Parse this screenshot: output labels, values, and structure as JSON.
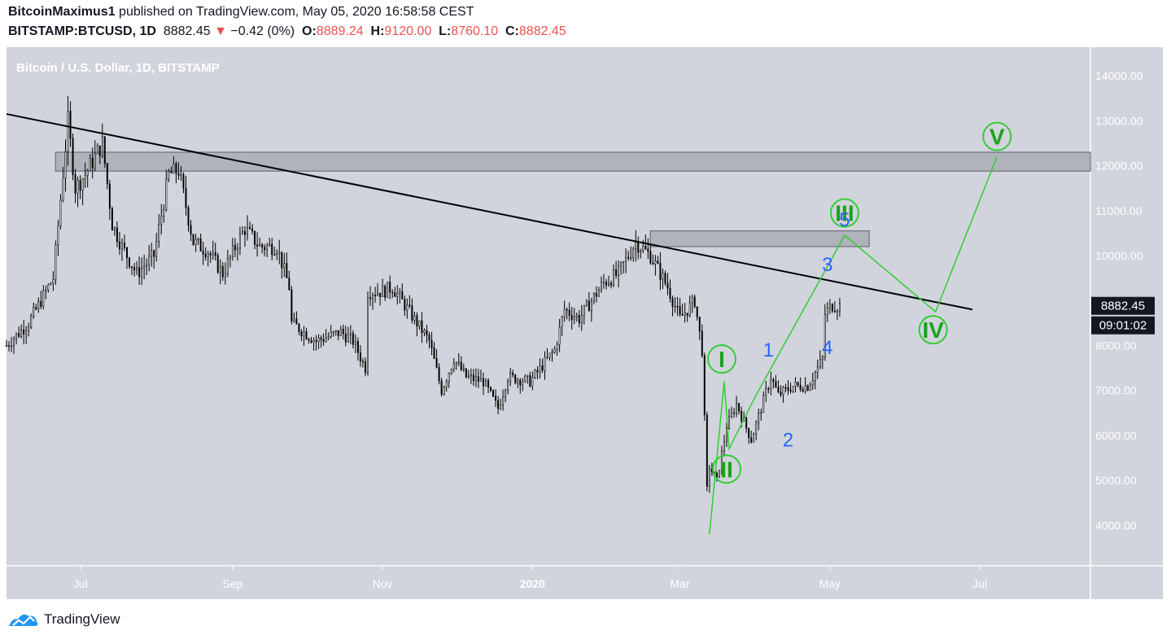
{
  "header": {
    "author": "BitcoinMaximus1",
    "published_text": "published on TradingView.com, May 05, 2020 16:58:58 CEST",
    "symbol": "BITSTAMP:BTCUSD, 1D",
    "price": "8882.45",
    "change_arrow": "▼",
    "change": "−0.42 (0%)",
    "o_label": "O:",
    "o_value": "8889.24",
    "h_label": "H:",
    "h_value": "9120.00",
    "l_label": "L:",
    "l_value": "8760.10",
    "c_label": "C:",
    "c_value": "8882.45"
  },
  "footer": {
    "brand": "TradingView"
  },
  "colors": {
    "plot_bg": "#d1d4dc",
    "candle": "#000000",
    "wave_green": "#33cc33",
    "wave_label_green": "#1aa31a",
    "wave_blue": "#2962ff",
    "price_tag_bg": "#131722"
  },
  "chart_data": {
    "type": "candlestick",
    "title": "Bitcoin / U.S. Dollar, 1D, BITSTAMP",
    "y_axis": {
      "ticks": [
        "14000.00",
        "13000.00",
        "12000.00",
        "11000.00",
        "10000.00",
        "9000.00",
        "8000.00",
        "7000.00",
        "6000.00",
        "5000.00",
        "4000.00"
      ],
      "tick_values": [
        14000,
        13000,
        12000,
        11000,
        10000,
        9000,
        8000,
        7000,
        6000,
        5000,
        4000
      ],
      "range": [
        3100,
        14600
      ],
      "current_price": "8882.45",
      "countdown": "09:01:02"
    },
    "x_axis": {
      "labels": [
        "Jul",
        "Sep",
        "Nov",
        "2020",
        "Mar",
        "May",
        "Jul"
      ],
      "dates": [
        "2019-07-01",
        "2019-09-01",
        "2019-11-01",
        "2020-01-01",
        "2020-03-01",
        "2020-05-01",
        "2020-07-01"
      ],
      "range": [
        "2019-06-01",
        "2020-08-15"
      ]
    },
    "price_path": [
      [
        "2019-06-01",
        8000
      ],
      [
        "2019-06-10",
        8500
      ],
      [
        "2019-06-20",
        9500
      ],
      [
        "2019-06-26",
        13000
      ],
      [
        "2019-06-29",
        11500
      ],
      [
        "2019-07-03",
        11800
      ],
      [
        "2019-07-10",
        12500
      ],
      [
        "2019-07-14",
        10700
      ],
      [
        "2019-07-18",
        10200
      ],
      [
        "2019-07-24",
        9600
      ],
      [
        "2019-07-31",
        10000
      ],
      [
        "2019-08-06",
        11800
      ],
      [
        "2019-08-10",
        11900
      ],
      [
        "2019-08-16",
        10300
      ],
      [
        "2019-08-22",
        10100
      ],
      [
        "2019-08-28",
        9600
      ],
      [
        "2019-09-03",
        10300
      ],
      [
        "2019-09-06",
        10600
      ],
      [
        "2019-09-12",
        10200
      ],
      [
        "2019-09-19",
        10200
      ],
      [
        "2019-09-24",
        9300
      ],
      [
        "2019-09-25",
        8500
      ],
      [
        "2019-10-05",
        8100
      ],
      [
        "2019-10-15",
        8300
      ],
      [
        "2019-10-20",
        8100
      ],
      [
        "2019-10-25",
        7500
      ],
      [
        "2019-10-26",
        9200
      ],
      [
        "2019-11-01",
        9200
      ],
      [
        "2019-11-05",
        9300
      ],
      [
        "2019-11-10",
        8900
      ],
      [
        "2019-11-20",
        8100
      ],
      [
        "2019-11-25",
        7000
      ],
      [
        "2019-11-30",
        7700
      ],
      [
        "2019-12-05",
        7300
      ],
      [
        "2019-12-12",
        7200
      ],
      [
        "2019-12-18",
        6600
      ],
      [
        "2019-12-22",
        7300
      ],
      [
        "2019-12-31",
        7200
      ],
      [
        "2020-01-10",
        7900
      ],
      [
        "2020-01-14",
        8800
      ],
      [
        "2020-01-20",
        8600
      ],
      [
        "2020-01-30",
        9400
      ],
      [
        "2020-02-05",
        9600
      ],
      [
        "2020-02-12",
        10300
      ],
      [
        "2020-02-18",
        10000
      ],
      [
        "2020-02-25",
        9300
      ],
      [
        "2020-03-01",
        8600
      ],
      [
        "2020-03-07",
        9000
      ],
      [
        "2020-03-10",
        7900
      ],
      [
        "2020-03-12",
        4800
      ],
      [
        "2020-03-13",
        5300
      ],
      [
        "2020-03-16",
        5000
      ],
      [
        "2020-03-20",
        6200
      ],
      [
        "2020-03-24",
        6700
      ],
      [
        "2020-03-30",
        5900
      ],
      [
        "2020-04-07",
        7300
      ],
      [
        "2020-04-10",
        6900
      ],
      [
        "2020-04-16",
        7100
      ],
      [
        "2020-04-22",
        7100
      ],
      [
        "2020-04-28",
        7700
      ],
      [
        "2020-04-29",
        8700
      ],
      [
        "2020-05-02",
        8900
      ],
      [
        "2020-05-05",
        8882
      ]
    ],
    "trendline": {
      "start": [
        "2019-06-01",
        13150
      ],
      "end": [
        "2020-06-28",
        8800
      ]
    },
    "zones": [
      {
        "from": "2019-06-11",
        "to": "2020-08-15",
        "low": 11880,
        "high": 12300
      },
      {
        "from": "2020-02-08",
        "to": "2020-05-17",
        "low": 10200,
        "high": 10550
      }
    ],
    "wave_path": [
      [
        "2020-03-13",
        3800
      ],
      [
        "2020-03-19",
        7200
      ],
      [
        "2020-03-21",
        5700
      ],
      [
        "2020-04-01",
        6900
      ],
      [
        "2020-05-07",
        10450
      ],
      [
        "2020-06-13",
        8750
      ],
      [
        "2020-07-08",
        12200
      ]
    ],
    "wave_labels": [
      {
        "text": "I",
        "date": "2020-03-18",
        "price": 7700,
        "style": "circle"
      },
      {
        "text": "II",
        "date": "2020-03-20",
        "price": 5250,
        "style": "circle"
      },
      {
        "text": "III",
        "date": "2020-05-07",
        "price": 10950,
        "style": "circle"
      },
      {
        "text": "IV",
        "date": "2020-06-12",
        "price": 8350,
        "style": "circle"
      },
      {
        "text": "V",
        "date": "2020-07-08",
        "price": 12650,
        "style": "circle"
      },
      {
        "text": "1",
        "date": "2020-04-06",
        "price": 7900,
        "style": "plain"
      },
      {
        "text": "2",
        "date": "2020-04-14",
        "price": 5900,
        "style": "plain"
      },
      {
        "text": "3",
        "date": "2020-04-30",
        "price": 9800,
        "style": "plain"
      },
      {
        "text": "4",
        "date": "2020-04-30",
        "price": 7950,
        "style": "plain"
      },
      {
        "text": "5",
        "date": "2020-05-07",
        "price": 10800,
        "style": "plain"
      }
    ]
  }
}
